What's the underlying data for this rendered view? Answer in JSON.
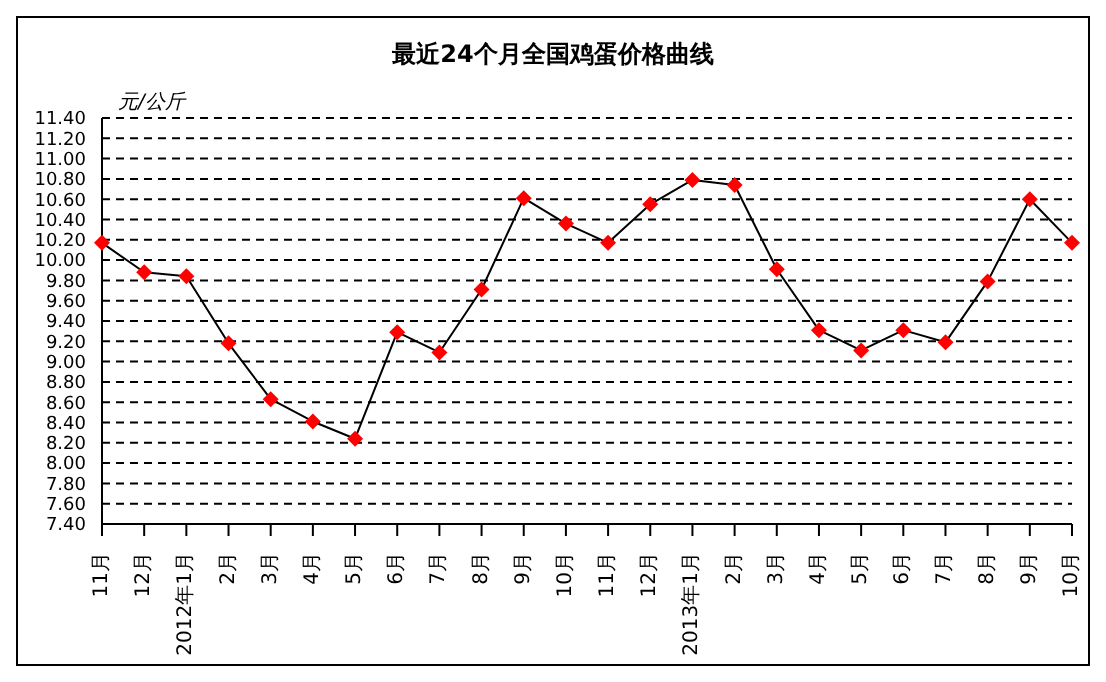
{
  "chart_data": {
    "type": "line",
    "title": "最近24个月全国鸡蛋价格曲线",
    "ylabel": "元/公斤",
    "categories": [
      "11月",
      "12月",
      "2012年1月",
      "2月",
      "3月",
      "4月",
      "5月",
      "6月",
      "7月",
      "8月",
      "9月",
      "10月",
      "11月",
      "12月",
      "2013年1月",
      "2月",
      "3月",
      "4月",
      "5月",
      "6月",
      "7月",
      "8月",
      "9月",
      "10月"
    ],
    "series": [
      {
        "color": "#ff0000",
        "values": [
          10.17,
          9.88,
          9.84,
          9.18,
          8.63,
          8.41,
          8.24,
          9.29,
          9.09,
          9.71,
          10.61,
          10.36,
          10.17,
          10.55,
          10.79,
          10.74,
          9.91,
          9.31,
          9.11,
          9.31,
          9.19,
          9.79,
          10.6,
          10.17
        ]
      }
    ],
    "ylim": [
      7.4,
      11.4
    ],
    "yticks": [
      {
        "value": 7.4,
        "label": "7.40"
      },
      {
        "value": 7.6,
        "label": "7.60"
      },
      {
        "value": 7.8,
        "label": "7.80"
      },
      {
        "value": 8,
        "label": "8.00"
      },
      {
        "value": 8.2,
        "label": "8.20"
      },
      {
        "value": 8.4,
        "label": "8.40"
      },
      {
        "value": 8.6,
        "label": "8.60"
      },
      {
        "value": 8.8,
        "label": "8.80"
      },
      {
        "value": 9,
        "label": "9.00"
      },
      {
        "value": 9.2,
        "label": "9.20"
      },
      {
        "value": 9.4,
        "label": "9.40"
      },
      {
        "value": 9.6,
        "label": "9.60"
      },
      {
        "value": 9.8,
        "label": "9.80"
      },
      {
        "value": 10,
        "label": "10.00"
      },
      {
        "value": 10.2,
        "label": "10.20"
      },
      {
        "value": 10.4,
        "label": "10.40"
      },
      {
        "value": 10.6,
        "label": "10.60"
      },
      {
        "value": 10.8,
        "label": "10.80"
      },
      {
        "value": 11,
        "label": "11.00"
      },
      {
        "value": 11.2,
        "label": "11.20"
      },
      {
        "value": 11.4,
        "label": "11.40"
      }
    ],
    "grid": "y",
    "legend": false,
    "marker": "diamond",
    "line_style": "solid"
  }
}
